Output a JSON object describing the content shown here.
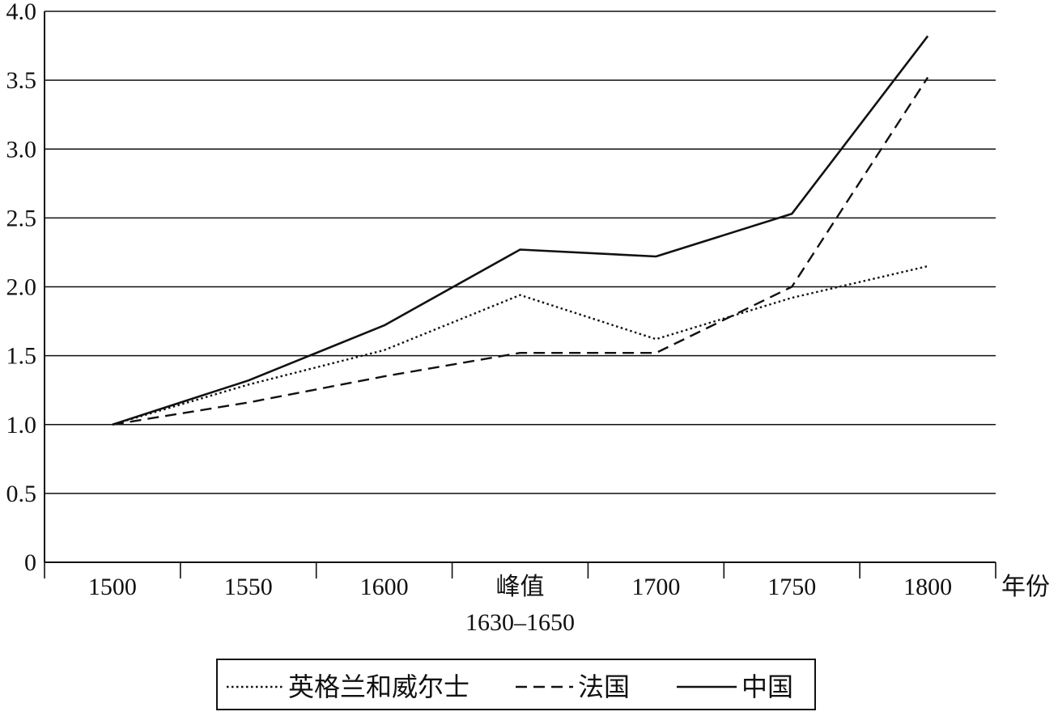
{
  "chart_data": {
    "type": "line",
    "categories": [
      "1500",
      "1550",
      "1600",
      "峰值\n1630–1650",
      "1700",
      "1750",
      "1800"
    ],
    "x_unit_label": "年份",
    "ylim": [
      0,
      4.0
    ],
    "yticks": [
      "0",
      "0.5",
      "1.0",
      "1.5",
      "2.0",
      "2.5",
      "3.0",
      "3.5",
      "4.0"
    ],
    "grid": true,
    "legend_position": "bottom",
    "series": [
      {
        "name": "英格兰和威尔士",
        "style": "dotted",
        "values": [
          1.0,
          1.29,
          1.54,
          1.94,
          1.62,
          1.92,
          2.15
        ]
      },
      {
        "name": "法国",
        "style": "dashed",
        "values": [
          1.0,
          1.16,
          1.35,
          1.52,
          1.52,
          2.0,
          3.52
        ]
      },
      {
        "name": "中国",
        "style": "solid",
        "values": [
          1.0,
          1.32,
          1.72,
          2.27,
          2.22,
          2.53,
          3.82
        ]
      }
    ],
    "colors": {
      "line": "#111111",
      "grid": "#111111",
      "background": "#ffffff"
    }
  }
}
